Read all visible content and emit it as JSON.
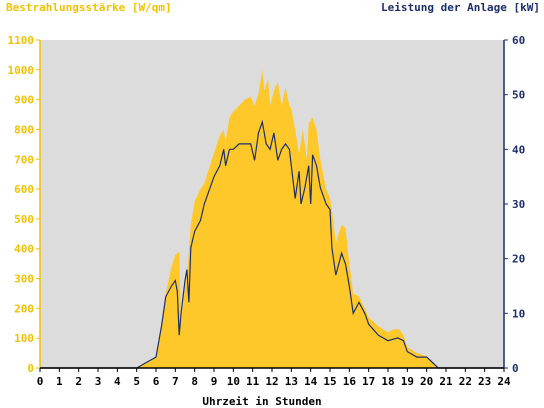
{
  "chart_data": {
    "type": "area",
    "title_left": "Bestrahlungsstärke [W/qm]",
    "title_right": "Leistung der Anlage [kW]",
    "xlabel": "Uhrzeit in Stunden",
    "xlim": [
      0,
      24
    ],
    "x_ticks": [
      "0",
      "1",
      "2",
      "3",
      "4",
      "5",
      "6",
      "7",
      "8",
      "9",
      "10",
      "11",
      "12",
      "13",
      "14",
      "15",
      "16",
      "17",
      "18",
      "19",
      "20",
      "21",
      "22",
      "23",
      "24"
    ],
    "y_left": {
      "lim": [
        0,
        1100
      ],
      "ticks": [
        "0",
        "100",
        "200",
        "300",
        "400",
        "500",
        "600",
        "700",
        "800",
        "900",
        "1000",
        "1100"
      ]
    },
    "y_right": {
      "lim": [
        0,
        60
      ],
      "ticks": [
        "0",
        "10",
        "20",
        "30",
        "40",
        "50",
        "60"
      ]
    },
    "grid": false,
    "colors": {
      "plot_background": "#dcdcdc",
      "irradiance_fill": "#ffc82a",
      "power_line": "#1c2f6b",
      "left_axis": "#f2c200",
      "right_axis": "#1c2f6b"
    },
    "series": [
      {
        "axis": "left",
        "style": "area",
        "values": [
          [
            0,
            0
          ],
          [
            5.0,
            0
          ],
          [
            5.3,
            10
          ],
          [
            5.7,
            25
          ],
          [
            6.0,
            40
          ],
          [
            6.3,
            150
          ],
          [
            6.5,
            250
          ],
          [
            6.8,
            340
          ],
          [
            7.0,
            380
          ],
          [
            7.2,
            390
          ],
          [
            7.3,
            150
          ],
          [
            7.5,
            270
          ],
          [
            7.6,
            310
          ],
          [
            7.7,
            390
          ],
          [
            7.8,
            480
          ],
          [
            8.0,
            560
          ],
          [
            8.3,
            600
          ],
          [
            8.5,
            620
          ],
          [
            8.7,
            660
          ],
          [
            9.0,
            720
          ],
          [
            9.3,
            780
          ],
          [
            9.5,
            800
          ],
          [
            9.6,
            760
          ],
          [
            9.8,
            840
          ],
          [
            10.0,
            860
          ],
          [
            10.3,
            880
          ],
          [
            10.6,
            900
          ],
          [
            10.9,
            910
          ],
          [
            11.1,
            880
          ],
          [
            11.3,
            920
          ],
          [
            11.5,
            1000
          ],
          [
            11.6,
            930
          ],
          [
            11.8,
            970
          ],
          [
            11.9,
            880
          ],
          [
            12.1,
            930
          ],
          [
            12.3,
            960
          ],
          [
            12.5,
            880
          ],
          [
            12.7,
            940
          ],
          [
            12.9,
            880
          ],
          [
            13.0,
            870
          ],
          [
            13.2,
            800
          ],
          [
            13.4,
            720
          ],
          [
            13.6,
            800
          ],
          [
            13.8,
            700
          ],
          [
            13.9,
            820
          ],
          [
            14.1,
            840
          ],
          [
            14.3,
            800
          ],
          [
            14.5,
            700
          ],
          [
            14.8,
            600
          ],
          [
            15.0,
            570
          ],
          [
            15.1,
            530
          ],
          [
            15.3,
            420
          ],
          [
            15.6,
            480
          ],
          [
            15.8,
            470
          ],
          [
            16.0,
            350
          ],
          [
            16.2,
            250
          ],
          [
            16.5,
            240
          ],
          [
            16.8,
            200
          ],
          [
            17.0,
            170
          ],
          [
            17.5,
            140
          ],
          [
            18.0,
            120
          ],
          [
            18.3,
            130
          ],
          [
            18.6,
            130
          ],
          [
            18.8,
            110
          ],
          [
            19.0,
            70
          ],
          [
            19.5,
            50
          ],
          [
            20.0,
            40
          ],
          [
            20.3,
            20
          ],
          [
            20.5,
            5
          ],
          [
            20.6,
            0
          ],
          [
            24,
            0
          ]
        ]
      },
      {
        "axis": "right",
        "style": "line",
        "values": [
          [
            0,
            0
          ],
          [
            5.0,
            0
          ],
          [
            5.5,
            1
          ],
          [
            6.0,
            2
          ],
          [
            6.3,
            8
          ],
          [
            6.5,
            13
          ],
          [
            6.8,
            15
          ],
          [
            7.0,
            16
          ],
          [
            7.1,
            14
          ],
          [
            7.2,
            6
          ],
          [
            7.3,
            10
          ],
          [
            7.5,
            16
          ],
          [
            7.6,
            18
          ],
          [
            7.7,
            12
          ],
          [
            7.8,
            22
          ],
          [
            8.0,
            25
          ],
          [
            8.3,
            27
          ],
          [
            8.5,
            30
          ],
          [
            8.7,
            32
          ],
          [
            9.0,
            35
          ],
          [
            9.3,
            37
          ],
          [
            9.5,
            40
          ],
          [
            9.6,
            37
          ],
          [
            9.8,
            40
          ],
          [
            10.0,
            40
          ],
          [
            10.3,
            41
          ],
          [
            10.6,
            41
          ],
          [
            10.9,
            41
          ],
          [
            11.1,
            38
          ],
          [
            11.3,
            43
          ],
          [
            11.5,
            45
          ],
          [
            11.7,
            41
          ],
          [
            11.9,
            40
          ],
          [
            12.1,
            43
          ],
          [
            12.3,
            38
          ],
          [
            12.5,
            40
          ],
          [
            12.7,
            41
          ],
          [
            12.9,
            40
          ],
          [
            13.0,
            37
          ],
          [
            13.2,
            31
          ],
          [
            13.4,
            36
          ],
          [
            13.5,
            30
          ],
          [
            13.7,
            33
          ],
          [
            13.9,
            37
          ],
          [
            14.0,
            30
          ],
          [
            14.1,
            39
          ],
          [
            14.3,
            37
          ],
          [
            14.5,
            33
          ],
          [
            14.8,
            30
          ],
          [
            15.0,
            29
          ],
          [
            15.1,
            22
          ],
          [
            15.3,
            17
          ],
          [
            15.6,
            21
          ],
          [
            15.8,
            19
          ],
          [
            16.0,
            15
          ],
          [
            16.2,
            10
          ],
          [
            16.5,
            12
          ],
          [
            16.8,
            10
          ],
          [
            17.0,
            8
          ],
          [
            17.5,
            6
          ],
          [
            18.0,
            5
          ],
          [
            18.5,
            5.5
          ],
          [
            18.8,
            5
          ],
          [
            19.0,
            3
          ],
          [
            19.5,
            2
          ],
          [
            20.0,
            2
          ],
          [
            20.3,
            1
          ],
          [
            20.6,
            0
          ],
          [
            24,
            0
          ]
        ]
      }
    ]
  }
}
